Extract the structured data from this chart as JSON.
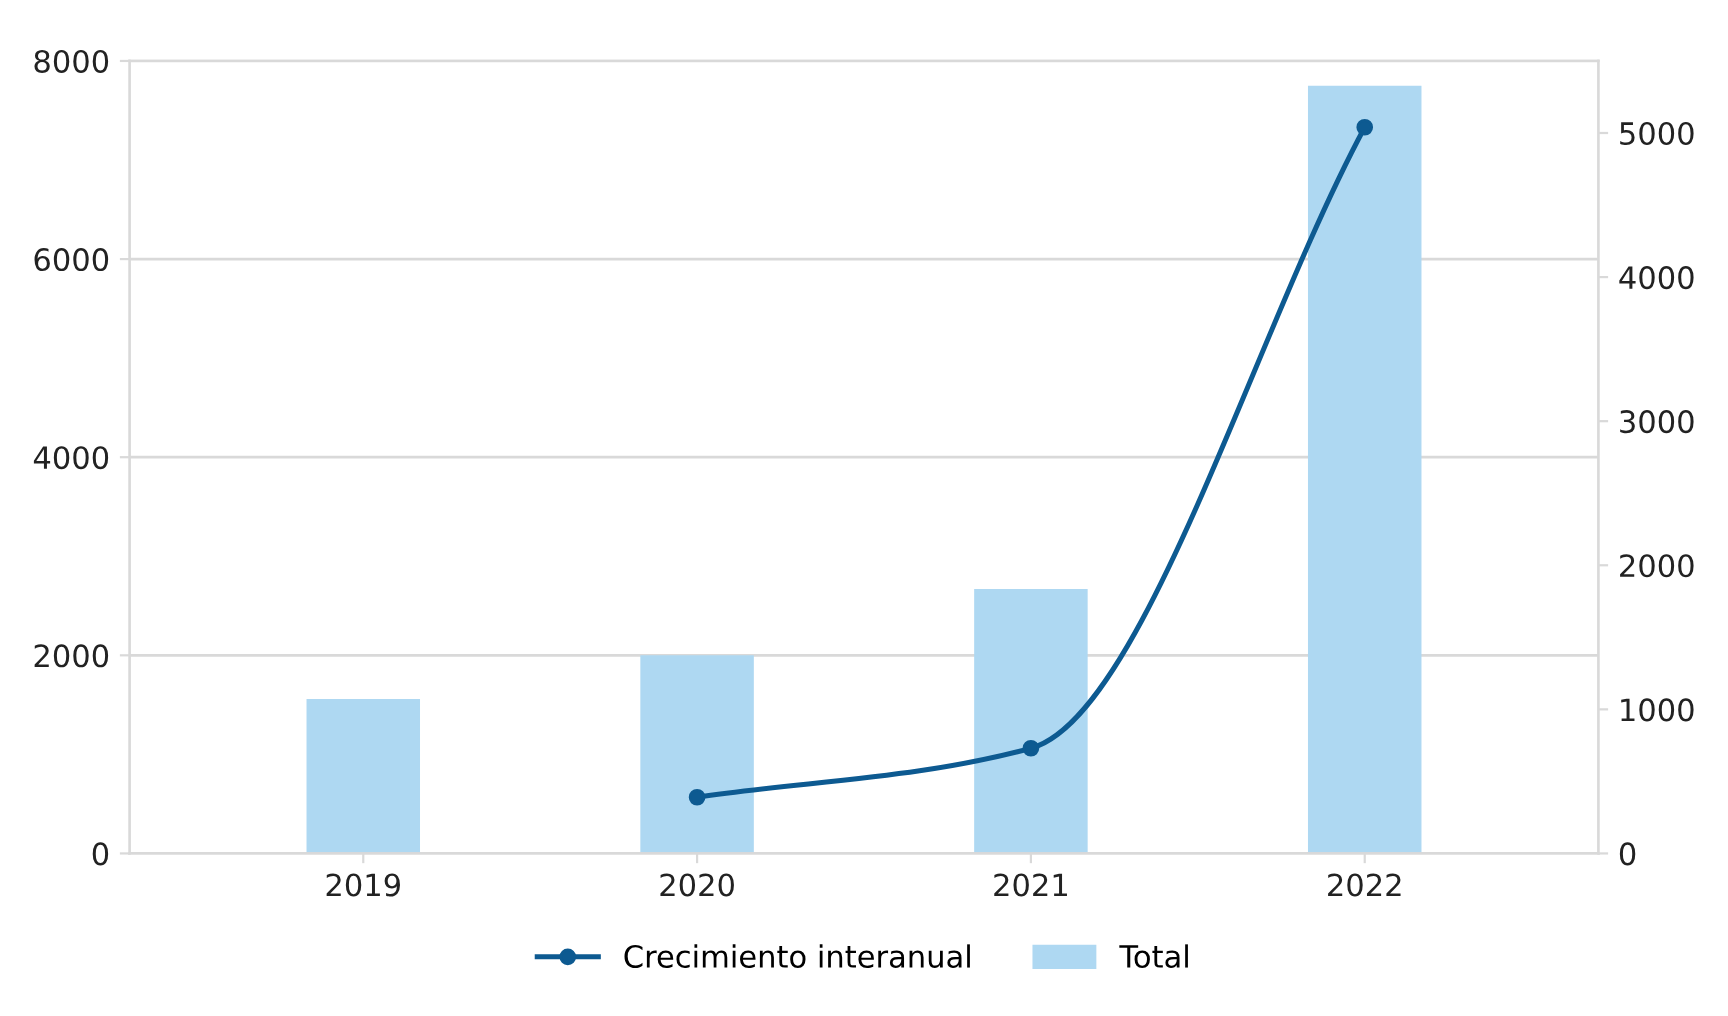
{
  "chart_data": {
    "type": "bar",
    "categories": [
      "2019",
      "2020",
      "2021",
      "2022"
    ],
    "series": [
      {
        "name": "Crecimiento interanual",
        "type": "line",
        "axis": "y2",
        "color": "#0d5a91",
        "marker": "circle",
        "values": [
          null,
          390,
          730,
          5040
        ]
      },
      {
        "name": "Total",
        "color": "#aed8f2",
        "values": [
          1560,
          2000,
          2670,
          7750
        ]
      }
    ],
    "ylim": [
      0,
      8000
    ],
    "yticks": [
      0,
      2000,
      4000,
      6000,
      8000
    ],
    "y2lim": [
      0,
      5500
    ],
    "y2ticks": [
      0,
      1000,
      2000,
      3000,
      4000,
      5000
    ],
    "grid": "y",
    "legend": "bottom"
  }
}
